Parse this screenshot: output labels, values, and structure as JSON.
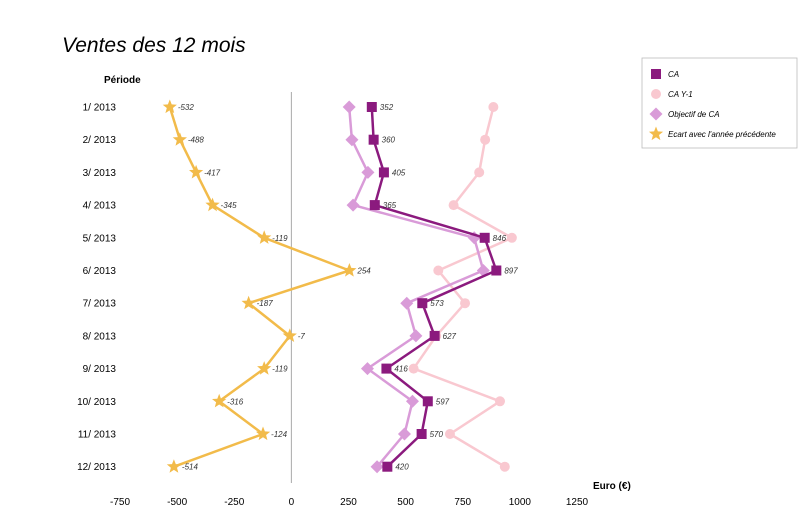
{
  "chart_data": {
    "type": "line",
    "orientation": "vertical-categories",
    "title": "Ventes des 12 mois",
    "ylabel": "Période",
    "xlabel": "Euro (€)",
    "categories": [
      "1/ 2013",
      "2/ 2013",
      "3/ 2013",
      "4/ 2013",
      "5/ 2013",
      "6/ 2013",
      "7/ 2013",
      "8/ 2013",
      "9/ 2013",
      "10/ 2013",
      "11/ 2013",
      "12/ 2013"
    ],
    "xlim": [
      -750,
      1250
    ],
    "xticks": [
      "-750",
      "-500",
      "-250",
      "0",
      "250",
      "500",
      "750",
      "1000",
      "1250"
    ],
    "xtick_values": [
      -750,
      -500,
      -250,
      0,
      250,
      500,
      750,
      1000,
      1250
    ],
    "grid": false,
    "legend_position": "top-right",
    "series": [
      {
        "name": "CA",
        "color": "#8B1A7E",
        "marker": "square",
        "labeled": true,
        "values": [
          352,
          360,
          405,
          365,
          846,
          897,
          573,
          627,
          416,
          597,
          570,
          420
        ]
      },
      {
        "name": "CA Y-1",
        "color": "#F9C8D0",
        "marker": "circle",
        "labeled": false,
        "values": [
          884,
          848,
          822,
          710,
          965,
          643,
          760,
          634,
          535,
          913,
          694,
          934
        ]
      },
      {
        "name": "Objectif de CA",
        "color": "#D99BD8",
        "marker": "diamond",
        "labeled": false,
        "values": [
          253,
          265,
          335,
          270,
          800,
          840,
          505,
          545,
          333,
          530,
          495,
          375
        ]
      },
      {
        "name": "Ecart avec l'année précédente",
        "color": "#F2BB4A",
        "marker": "star",
        "labeled": true,
        "values": [
          -532,
          -488,
          -417,
          -345,
          -119,
          254,
          -187,
          -7,
          -119,
          -316,
          -124,
          -514
        ]
      }
    ]
  }
}
